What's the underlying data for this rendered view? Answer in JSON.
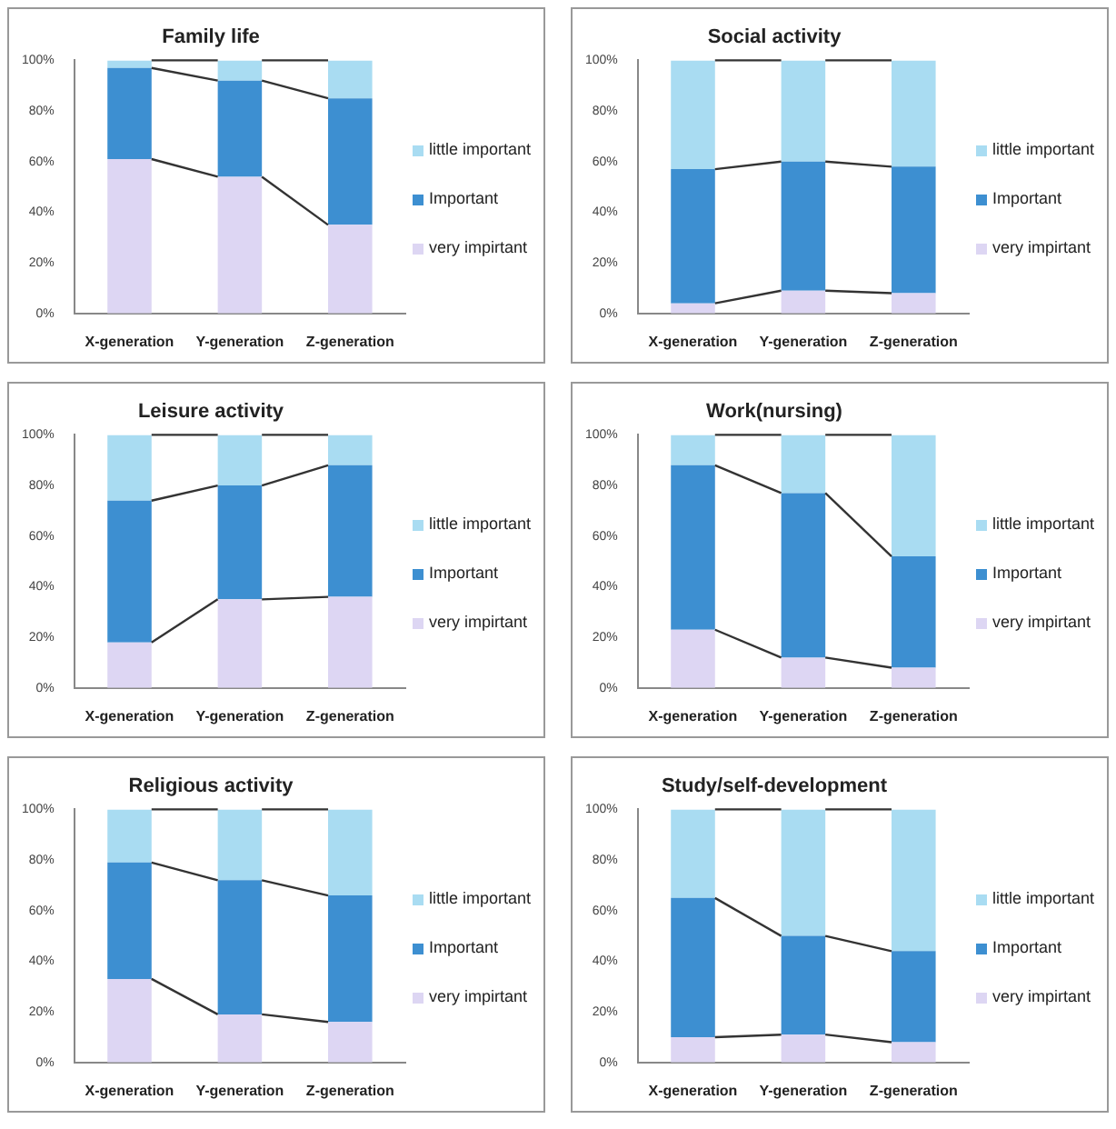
{
  "chart_data": [
    {
      "type": "bar",
      "title": "Family life",
      "categories": [
        "X-generation",
        "Y-generation",
        "Z-generation"
      ],
      "stacked": true,
      "legend": "right",
      "grid": false,
      "ylim": [
        0,
        100
      ],
      "yticks": [
        {
          "value": 0,
          "label": "0%"
        },
        {
          "value": 20,
          "label": "20%"
        },
        {
          "value": 40,
          "label": "40%"
        },
        {
          "value": 60,
          "label": "60%"
        },
        {
          "value": 80,
          "label": "80%"
        },
        {
          "value": 100,
          "label": "100%"
        }
      ],
      "series": [
        {
          "name": "very impirtant",
          "color": "#ddd6f3",
          "values": [
            61,
            54,
            35
          ]
        },
        {
          "name": "Important",
          "color": "#3d8fd1",
          "values": [
            36,
            38,
            50
          ]
        },
        {
          "name": "little important",
          "color": "#a9dcf2",
          "values": [
            3,
            8,
            15
          ]
        }
      ]
    },
    {
      "type": "bar",
      "title": "Social activity",
      "categories": [
        "X-generation",
        "Y-generation",
        "Z-generation"
      ],
      "stacked": true,
      "legend": "right",
      "grid": false,
      "ylim": [
        0,
        100
      ],
      "yticks": [
        {
          "value": 0,
          "label": "0%"
        },
        {
          "value": 20,
          "label": "20%"
        },
        {
          "value": 40,
          "label": "40%"
        },
        {
          "value": 60,
          "label": "60%"
        },
        {
          "value": 80,
          "label": "80%"
        },
        {
          "value": 100,
          "label": "100%"
        }
      ],
      "series": [
        {
          "name": "very impirtant",
          "color": "#ddd6f3",
          "values": [
            4,
            9,
            8
          ]
        },
        {
          "name": "Important",
          "color": "#3d8fd1",
          "values": [
            53,
            51,
            50
          ]
        },
        {
          "name": "little important",
          "color": "#a9dcf2",
          "values": [
            43,
            40,
            42
          ]
        }
      ]
    },
    {
      "type": "bar",
      "title": "Leisure activity",
      "categories": [
        "X-generation",
        "Y-generation",
        "Z-generation"
      ],
      "stacked": true,
      "legend": "right",
      "grid": false,
      "ylim": [
        0,
        100
      ],
      "yticks": [
        {
          "value": 0,
          "label": "0%"
        },
        {
          "value": 20,
          "label": "20%"
        },
        {
          "value": 40,
          "label": "40%"
        },
        {
          "value": 60,
          "label": "60%"
        },
        {
          "value": 80,
          "label": "80%"
        },
        {
          "value": 100,
          "label": "100%"
        }
      ],
      "series": [
        {
          "name": "very impirtant",
          "color": "#ddd6f3",
          "values": [
            18,
            35,
            36
          ]
        },
        {
          "name": "Important",
          "color": "#3d8fd1",
          "values": [
            56,
            45,
            52
          ]
        },
        {
          "name": "little important",
          "color": "#a9dcf2",
          "values": [
            26,
            20,
            12
          ]
        }
      ]
    },
    {
      "type": "bar",
      "title": "Work(nursing)",
      "categories": [
        "X-generation",
        "Y-generation",
        "Z-generation"
      ],
      "stacked": true,
      "legend": "right",
      "grid": false,
      "ylim": [
        0,
        100
      ],
      "yticks": [
        {
          "value": 0,
          "label": "0%"
        },
        {
          "value": 20,
          "label": "20%"
        },
        {
          "value": 40,
          "label": "40%"
        },
        {
          "value": 60,
          "label": "60%"
        },
        {
          "value": 80,
          "label": "80%"
        },
        {
          "value": 100,
          "label": "100%"
        }
      ],
      "series": [
        {
          "name": "very impirtant",
          "color": "#ddd6f3",
          "values": [
            23,
            12,
            8
          ]
        },
        {
          "name": "Important",
          "color": "#3d8fd1",
          "values": [
            65,
            65,
            44
          ]
        },
        {
          "name": "little important",
          "color": "#a9dcf2",
          "values": [
            12,
            23,
            48
          ]
        }
      ]
    },
    {
      "type": "bar",
      "title": "Religious activity",
      "categories": [
        "X-generation",
        "Y-generation",
        "Z-generation"
      ],
      "stacked": true,
      "legend": "right",
      "grid": false,
      "ylim": [
        0,
        100
      ],
      "yticks": [
        {
          "value": 0,
          "label": "0%"
        },
        {
          "value": 20,
          "label": "20%"
        },
        {
          "value": 40,
          "label": "40%"
        },
        {
          "value": 60,
          "label": "60%"
        },
        {
          "value": 80,
          "label": "80%"
        },
        {
          "value": 100,
          "label": "100%"
        }
      ],
      "series": [
        {
          "name": "very impirtant",
          "color": "#ddd6f3",
          "values": [
            33,
            19,
            16
          ]
        },
        {
          "name": "Important",
          "color": "#3d8fd1",
          "values": [
            46,
            53,
            50
          ]
        },
        {
          "name": "little important",
          "color": "#a9dcf2",
          "values": [
            21,
            28,
            34
          ]
        }
      ]
    },
    {
      "type": "bar",
      "title": "Study/self-development",
      "categories": [
        "X-generation",
        "Y-generation",
        "Z-generation"
      ],
      "stacked": true,
      "legend": "right",
      "grid": false,
      "ylim": [
        0,
        100
      ],
      "yticks": [
        {
          "value": 0,
          "label": "0%"
        },
        {
          "value": 20,
          "label": "20%"
        },
        {
          "value": 40,
          "label": "40%"
        },
        {
          "value": 60,
          "label": "60%"
        },
        {
          "value": 80,
          "label": "80%"
        },
        {
          "value": 100,
          "label": "100%"
        }
      ],
      "series": [
        {
          "name": "very impirtant",
          "color": "#ddd6f3",
          "values": [
            10,
            11,
            8
          ]
        },
        {
          "name": "Important",
          "color": "#3d8fd1",
          "values": [
            55,
            39,
            36
          ]
        },
        {
          "name": "little important",
          "color": "#a9dcf2",
          "values": [
            35,
            50,
            56
          ]
        }
      ]
    }
  ]
}
